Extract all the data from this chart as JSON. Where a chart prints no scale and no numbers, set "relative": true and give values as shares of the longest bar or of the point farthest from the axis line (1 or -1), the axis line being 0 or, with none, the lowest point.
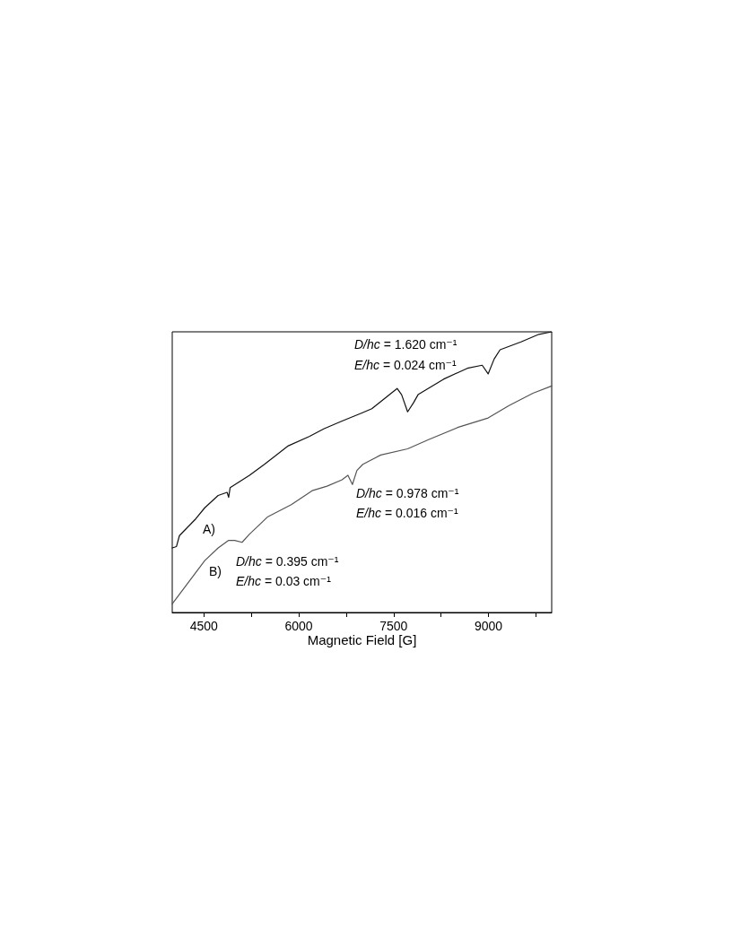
{
  "chart_data": {
    "type": "line",
    "xlabel": "Magnetic Field [G]",
    "relative": true,
    "xlim": [
      4000,
      10000
    ],
    "xticks": [
      4500,
      {
        "value": 5250,
        "label": null
      },
      6000,
      {
        "value": 6750,
        "label": null
      },
      7500,
      {
        "value": 8250,
        "label": null
      },
      9000,
      {
        "value": 9750,
        "label": null
      }
    ],
    "grid": false,
    "marker": "none",
    "line_style": "solid",
    "series": [
      {
        "color": "#111111",
        "x": [
          4000,
          4067,
          4114,
          4373,
          4514,
          4726,
          4868,
          4892,
          4916,
          5222,
          5458,
          5836,
          6166,
          6402,
          6685,
          6990,
          7156,
          7556,
          7627,
          7722,
          7817,
          7887,
          8288,
          8666,
          8901,
          8995,
          9090,
          9184,
          9515,
          9798,
          10000
        ],
        "values": [
          0.23,
          0.235,
          0.274,
          0.334,
          0.373,
          0.417,
          0.428,
          0.41,
          0.445,
          0.489,
          0.528,
          0.594,
          0.627,
          0.655,
          0.682,
          0.71,
          0.726,
          0.798,
          0.776,
          0.715,
          0.748,
          0.776,
          0.831,
          0.87,
          0.881,
          0.85,
          0.903,
          0.936,
          0.964,
          0.991,
          1.0
        ]
      },
      {
        "color": "#555555",
        "x": [
          4000,
          4184,
          4514,
          4726,
          4892,
          4987,
          5104,
          5222,
          5505,
          5882,
          6212,
          6448,
          6685,
          6778,
          6849,
          6920,
          7014,
          7297,
          7722,
          8052,
          8524,
          8995,
          9325,
          9703,
          10000
        ],
        "values": [
          0.031,
          0.086,
          0.185,
          0.23,
          0.257,
          0.257,
          0.25,
          0.279,
          0.34,
          0.384,
          0.434,
          0.45,
          0.473,
          0.489,
          0.456,
          0.506,
          0.528,
          0.561,
          0.583,
          0.616,
          0.66,
          0.693,
          0.737,
          0.781,
          0.807
        ]
      }
    ],
    "annotations": [
      "A)",
      "B)",
      "D/hc = 1.620 cm⁻¹",
      "E/hc = 0.024 cm⁻¹",
      "D/hc = 0.978 cm⁻¹",
      "E/hc = 0.016 cm⁻¹",
      "D/hc = 0.395 cm⁻¹",
      "E/hc = 0.03 cm⁻¹"
    ]
  }
}
